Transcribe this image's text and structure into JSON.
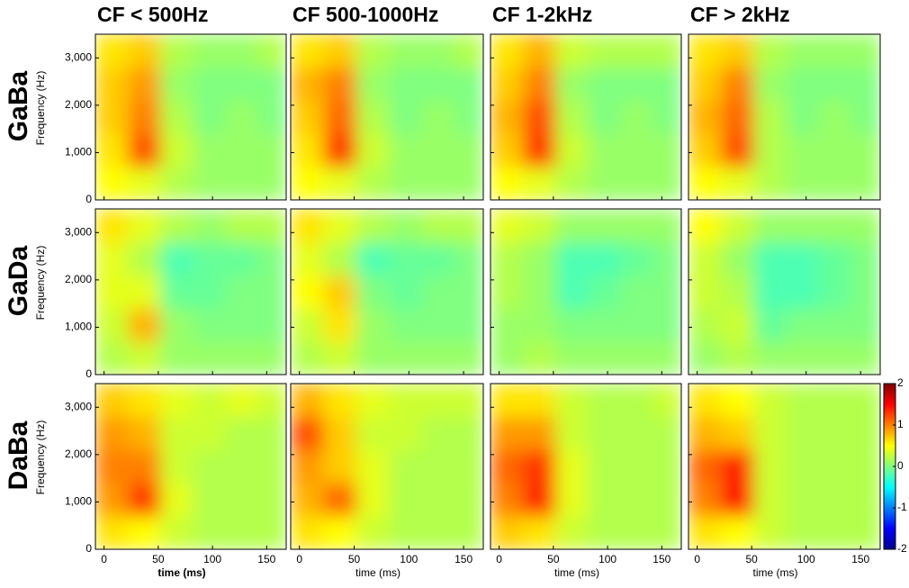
{
  "chart_data": {
    "type": "heatmap",
    "columns": [
      "CF < 500Hz",
      "CF 500-1000Hz",
      "CF 1-2kHz",
      "CF > 2kHz"
    ],
    "rows": [
      "GaBa",
      "GaDa",
      "DaBa"
    ],
    "xlabel": "time (ms)",
    "ylabel": "Frequency (Hz)",
    "xlim": [
      -8,
      168
    ],
    "xticks": [
      0,
      50,
      100,
      150
    ],
    "ylim": [
      0,
      3500
    ],
    "yticks": [
      0,
      {
        "value": 1000,
        "label": "1,000"
      },
      {
        "value": 2000,
        "label": "2,000"
      },
      {
        "value": 3000,
        "label": "3,000"
      }
    ],
    "x_bins": [
      -8,
      22,
      52,
      82,
      112,
      142,
      168
    ],
    "y_bins": [
      0,
      700,
      1400,
      2100,
      2800,
      3500
    ],
    "clim": [
      -2,
      2
    ],
    "cticks": [
      -2,
      -1,
      0,
      1,
      2
    ],
    "colormap": "jet",
    "panels": [
      {
        "values": [
          [
            0.5,
            0.4,
            0.2,
            0.1,
            0.1,
            0.1
          ],
          [
            0.6,
            1.2,
            0.3,
            0.1,
            0.1,
            0.1
          ],
          [
            0.7,
            1.0,
            0.2,
            0,
            0.1,
            0
          ],
          [
            0.7,
            0.9,
            0.1,
            0,
            0,
            0
          ],
          [
            0.6,
            0.7,
            0.2,
            0.1,
            0.1,
            0.2
          ]
        ]
      },
      {
        "values": [
          [
            0.5,
            0.4,
            0.2,
            0.1,
            0.1,
            0.1
          ],
          [
            0.6,
            1.3,
            0.3,
            0.1,
            0.1,
            0.1
          ],
          [
            0.7,
            1.1,
            0.2,
            0,
            0.1,
            0
          ],
          [
            0.8,
            1.0,
            0.1,
            0,
            0,
            0
          ],
          [
            0.6,
            0.7,
            0.2,
            0.1,
            0.1,
            0.2
          ]
        ]
      },
      {
        "values": [
          [
            0.5,
            0.4,
            0.2,
            0.1,
            0.1,
            0.1
          ],
          [
            0.7,
            1.3,
            0.3,
            0.1,
            0.1,
            0.1
          ],
          [
            0.8,
            1.2,
            0.2,
            0,
            0.1,
            0
          ],
          [
            0.7,
            1.0,
            0.1,
            0,
            0,
            0
          ],
          [
            0.6,
            0.8,
            0.3,
            0.2,
            0.2,
            0.2
          ]
        ]
      },
      {
        "values": [
          [
            0.5,
            0.4,
            0.2,
            0.1,
            0.1,
            0.1
          ],
          [
            0.7,
            1.2,
            0.2,
            0.1,
            0.1,
            0.1
          ],
          [
            0.8,
            1.1,
            0.2,
            0,
            0.1,
            0
          ],
          [
            0.7,
            1.0,
            0.1,
            0,
            0,
            0
          ],
          [
            0.6,
            0.7,
            0.2,
            0.1,
            0.1,
            0.1
          ]
        ]
      },
      {
        "values": [
          [
            0.2,
            0.3,
            0.1,
            0.1,
            0.1,
            0.1
          ],
          [
            0.3,
            0.8,
            0.1,
            0,
            0,
            0
          ],
          [
            0.4,
            0.4,
            -0.1,
            -0.1,
            0,
            0
          ],
          [
            0.4,
            0.2,
            -0.2,
            -0.1,
            -0.1,
            0
          ],
          [
            0.6,
            0.4,
            0.2,
            0.1,
            0.2,
            0.2
          ]
        ]
      },
      {
        "values": [
          [
            0.2,
            0.3,
            0.1,
            0.1,
            0.1,
            0.1
          ],
          [
            0.3,
            0.6,
            0.1,
            0,
            0,
            0
          ],
          [
            0.5,
            0.7,
            0,
            -0.1,
            0,
            0
          ],
          [
            0.4,
            0.2,
            -0.2,
            -0.1,
            -0.1,
            0
          ],
          [
            0.6,
            0.4,
            0.2,
            0.1,
            0.2,
            0.2
          ]
        ]
      },
      {
        "values": [
          [
            0.1,
            0.2,
            0.1,
            0.1,
            0.1,
            0.1
          ],
          [
            0.1,
            0.1,
            0,
            0,
            0,
            0
          ],
          [
            0.2,
            0.1,
            -0.2,
            -0.1,
            0,
            0
          ],
          [
            0.2,
            0.1,
            -0.2,
            -0.2,
            -0.1,
            0
          ],
          [
            0.4,
            0.3,
            0.1,
            0.1,
            0.1,
            0.1
          ]
        ]
      },
      {
        "values": [
          [
            0.1,
            0.2,
            0.1,
            0.1,
            0.1,
            0.1
          ],
          [
            0.2,
            0.3,
            -0.1,
            0,
            0,
            0
          ],
          [
            0.3,
            0.2,
            -0.2,
            -0.2,
            -0.1,
            0
          ],
          [
            0.3,
            0.1,
            -0.2,
            -0.2,
            -0.1,
            0
          ],
          [
            0.5,
            0.3,
            0.1,
            0.1,
            0.1,
            0.1
          ]
        ]
      },
      {
        "values": [
          [
            0.6,
            0.5,
            0.3,
            0.2,
            0.2,
            0.2
          ],
          [
            0.9,
            1.3,
            0.4,
            0.2,
            0.2,
            0.2
          ],
          [
            1.0,
            1.0,
            0.3,
            0.2,
            0.2,
            0.2
          ],
          [
            0.9,
            0.8,
            0.3,
            0.3,
            0.2,
            0.2
          ],
          [
            0.7,
            0.6,
            0.4,
            0.3,
            0.4,
            0.3
          ]
        ]
      },
      {
        "values": [
          [
            0.6,
            0.5,
            0.3,
            0.2,
            0.2,
            0.2
          ],
          [
            0.8,
            1.1,
            0.4,
            0.2,
            0.2,
            0.2
          ],
          [
            0.9,
            0.7,
            0.4,
            0.2,
            0.2,
            0.2
          ],
          [
            1.2,
            0.7,
            0.3,
            0.3,
            0.2,
            0.2
          ],
          [
            0.8,
            0.6,
            0.4,
            0.3,
            0.3,
            0.3
          ]
        ]
      },
      {
        "values": [
          [
            0.7,
            0.6,
            0.3,
            0.2,
            0.2,
            0.2
          ],
          [
            1.0,
            1.4,
            0.4,
            0.2,
            0.2,
            0.2
          ],
          [
            1.1,
            1.3,
            0.4,
            0.2,
            0.2,
            0.2
          ],
          [
            0.9,
            0.9,
            0.3,
            0.2,
            0.2,
            0.2
          ],
          [
            0.6,
            0.6,
            0.3,
            0.2,
            0.2,
            0.3
          ]
        ]
      },
      {
        "values": [
          [
            0.6,
            0.5,
            0.3,
            0.2,
            0.2,
            0.2
          ],
          [
            1.0,
            1.5,
            0.3,
            0.2,
            0.2,
            0.2
          ],
          [
            1.1,
            1.4,
            0.3,
            0.2,
            0.2,
            0.2
          ],
          [
            0.8,
            0.7,
            0.3,
            0.2,
            0.2,
            0.2
          ],
          [
            0.6,
            0.5,
            0.3,
            0.2,
            0.2,
            0.2
          ]
        ]
      }
    ]
  }
}
